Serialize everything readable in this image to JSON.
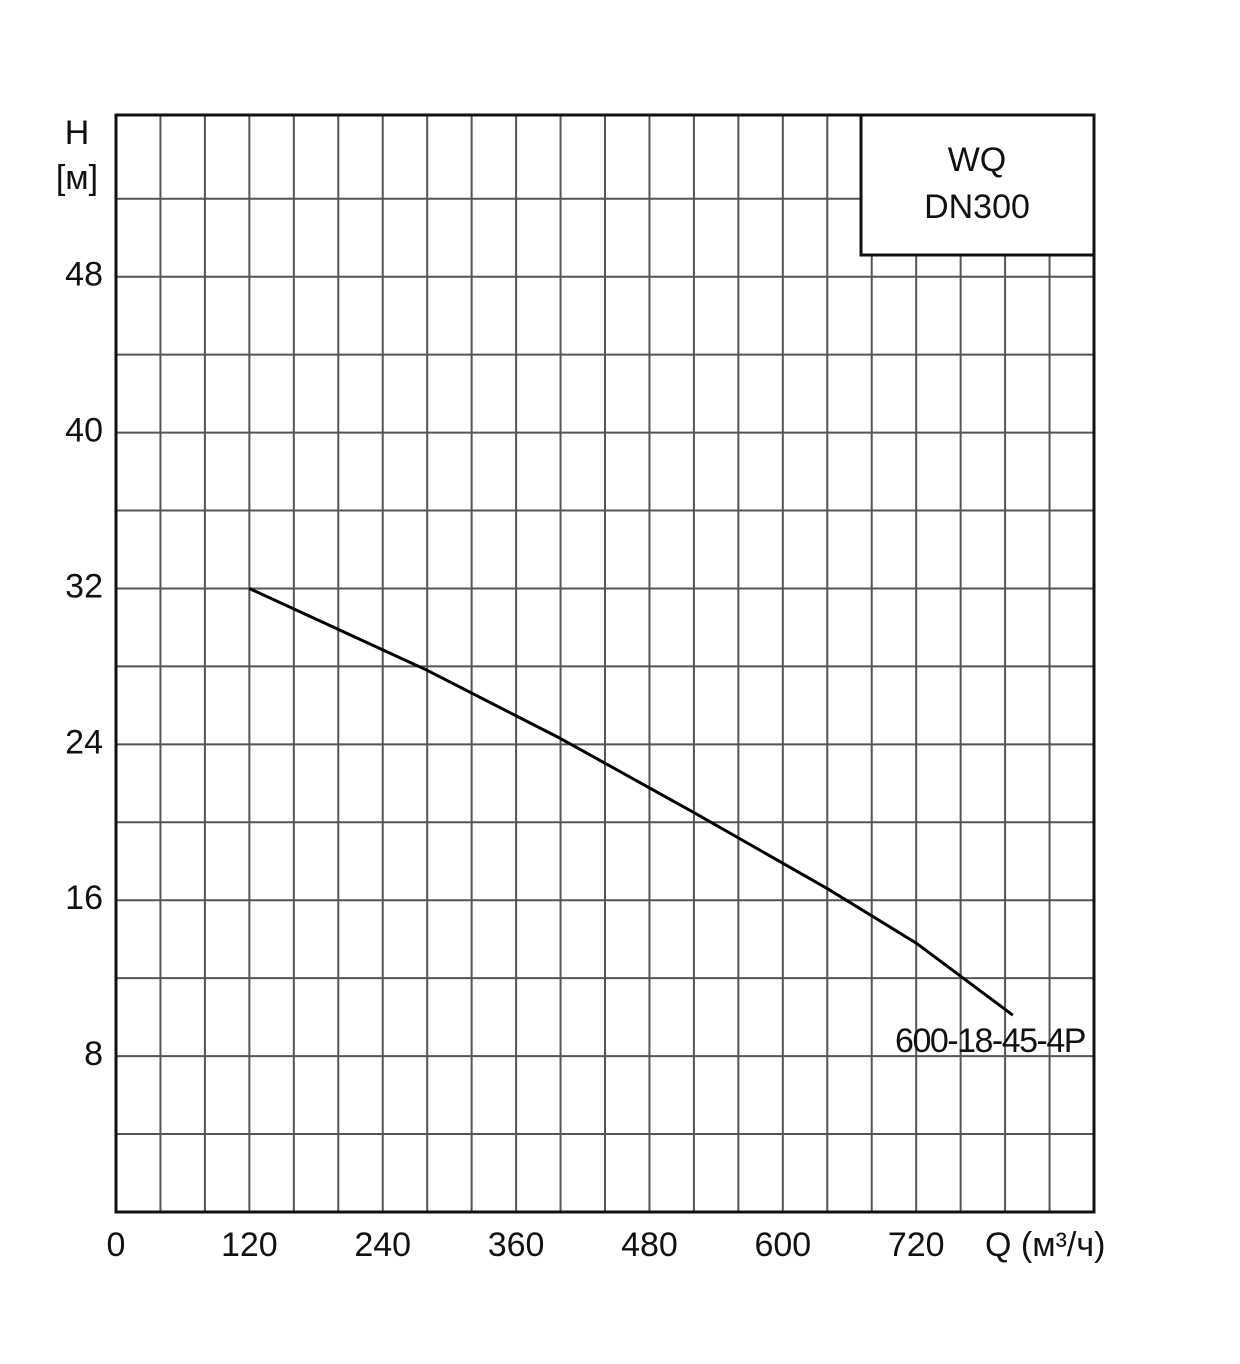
{
  "chart_data": {
    "type": "line",
    "title_lines": [
      "WQ",
      "DN300"
    ],
    "y_label_lines": [
      "H",
      "[м]"
    ],
    "x_label": "Q (м³/ч)",
    "x": [
      120,
      200,
      280,
      400,
      520,
      640,
      720,
      807
    ],
    "series": [
      {
        "name": "600-18-45-4P",
        "color": "#000000",
        "values": [
          32,
          29.9,
          27.8,
          24.3,
          20.5,
          16.6,
          13.8,
          10.1
        ]
      }
    ],
    "xlim": [
      0,
      880
    ],
    "xticks": [
      0,
      120,
      240,
      360,
      480,
      600,
      720
    ],
    "ylim": [
      0,
      56.3
    ],
    "yticks": [
      8,
      16,
      24,
      32,
      40,
      48
    ],
    "xgrid": [
      40,
      80,
      120,
      160,
      200,
      240,
      280,
      320,
      360,
      400,
      440,
      480,
      520,
      560,
      600,
      640,
      680,
      720,
      760,
      800,
      840
    ],
    "ygrid": [
      4,
      8,
      12,
      16,
      20,
      24,
      28,
      32,
      36,
      40,
      44,
      48,
      52
    ],
    "grid": true
  }
}
